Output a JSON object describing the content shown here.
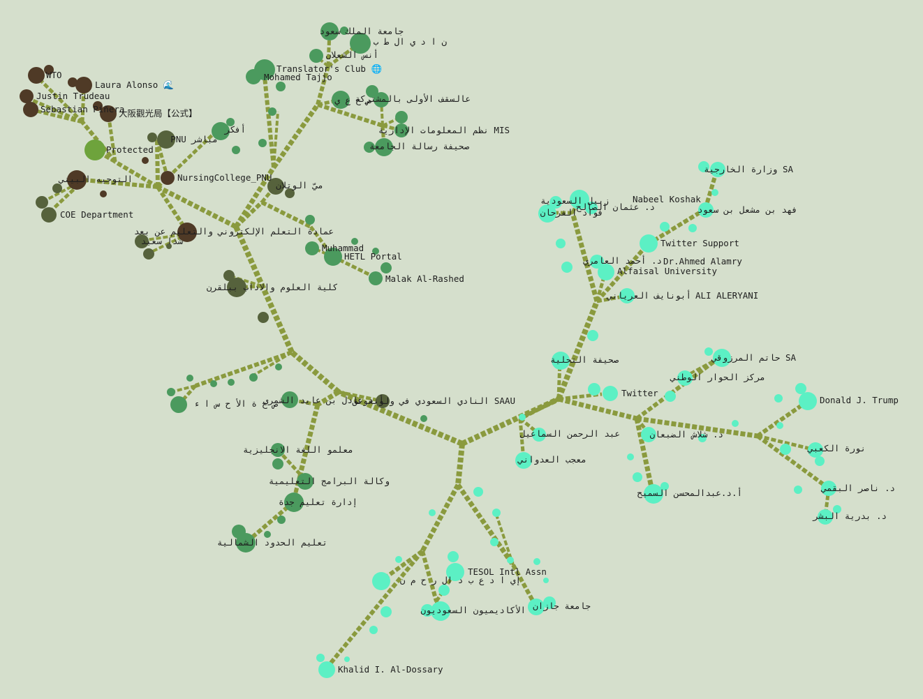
{
  "tree": {
    "colors": {
      "background": "#d5dfcc",
      "edge": "#8a9a3e",
      "group_brown": "#4f3a26",
      "group_olive": "#56623c",
      "group_green": "#4b9a5e",
      "group_mint": "#5cf0c4"
    },
    "labels": [
      "WTO",
      "Laura Alonso 🌊",
      "Justin Trudeau",
      "Sebastian Piñera",
      "大阪觀光局【公式】",
      "Protected",
      "PNU مباشر",
      "NursingCollege_PNU",
      "التوجيه البيني",
      "COE Department",
      "أفكر",
      "Mohamed Tajjo",
      "Translator's Club 🌐",
      "جامعة الملك سعود",
      "ن ا د ي ال ط ب",
      "أنس الشعلان",
      "عالسقف الأولى بالمشتركة",
      "ص ح ع ي",
      "نظم المعلومات الإدارية MIS",
      "صحيفة رسالة الجامعة",
      "ميّ الوتلان",
      "عمادة التعلم الإلكتروني والتعليم عن بعد",
      "شذا سعيد",
      "Muhammad",
      "HETL Portal",
      "Malak Al-Rashed",
      "كلية العلوم والاداب ببلقرن",
      "ص ح ة الأ ح س ا ء",
      "أ.د عادل بن عايد الشمري",
      "النادي السعودي في ولونغونق SAAU",
      "معلمو اللغة الانجليزية",
      "وكالة البرامج التعليمية",
      "إدارة تعليم جدة",
      "تعليم الحدود الشمالية",
      "TESOL Intl Assn",
      "إي ا د ع ب د ال ر ح م ن",
      "الأكاديميون السعوديون",
      "جامعة جازان",
      "Khalid I. Al-Dossary",
      "عبد الرحمن السماعيل",
      "معجب العدواني",
      "صحيفة التحلية",
      "Twitter",
      "د. شلاش الضبعان",
      "أ.د.عبدالمحسن السميح",
      "حاتم المرزوقي SA",
      "مركز الحوار الوطني",
      "Donald J. Trump",
      "نورة الكعبي",
      "د. ناصر البقمي",
      "د. بدرية البشر",
      "وزارة الخارجية SA",
      "فهد بن مشعل بن سعود",
      "Twitter Support",
      "Nabeel Koshak",
      "زبيل السعودية",
      "د. عثمان الصالح",
      "فواد الفرحان",
      "Dr.Ahmed Alamry",
      "د. أحمد العامري",
      "Alfaisal University",
      "ALI ALERYANI",
      "أبونايف العرياني"
    ]
  }
}
